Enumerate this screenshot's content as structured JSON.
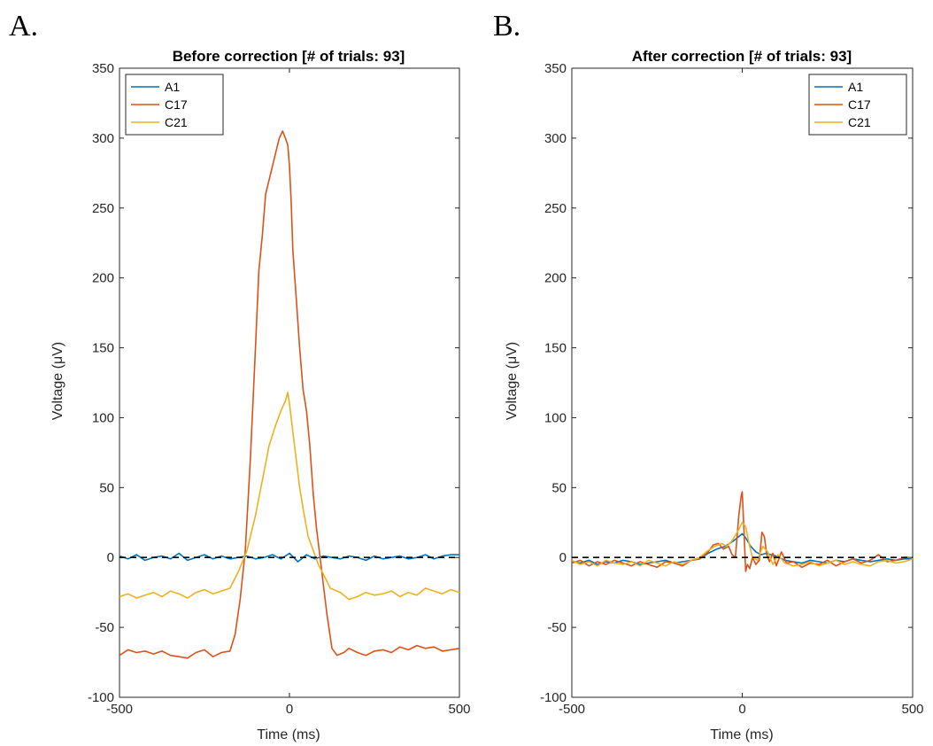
{
  "panels": [
    {
      "letter": "A.",
      "title": "Before correction [# of trials: 93]",
      "xlabel": "Time (ms)",
      "ylabel": "Voltage (μV)",
      "legend_position": "top-left"
    },
    {
      "letter": "B.",
      "title": "After correction [# of trials: 93]",
      "xlabel": "Time (ms)",
      "ylabel": "Voltage (μV)",
      "legend_position": "top-right"
    }
  ],
  "chart_data": [
    {
      "type": "line",
      "title": "Before correction [# of trials: 93]",
      "xlabel": "Time (ms)",
      "ylabel": "Voltage (μV)",
      "xlim": [
        -500,
        500
      ],
      "ylim": [
        -100,
        350
      ],
      "xticks": [
        -500,
        0,
        500
      ],
      "yticks": [
        -100,
        -50,
        0,
        50,
        100,
        150,
        200,
        250,
        300,
        350
      ],
      "grid": false,
      "legend": "top-left",
      "reference_line": {
        "y": 0,
        "style": "dashed",
        "color": "#000000"
      },
      "series": [
        {
          "name": "A1",
          "color": "#0072BD",
          "x": [
            -500,
            -475,
            -450,
            -425,
            -400,
            -375,
            -350,
            -325,
            -300,
            -275,
            -250,
            -225,
            -200,
            -175,
            -150,
            -125,
            -100,
            -75,
            -50,
            -25,
            0,
            25,
            50,
            75,
            100,
            125,
            150,
            175,
            200,
            225,
            250,
            275,
            300,
            325,
            350,
            375,
            400,
            425,
            450,
            475,
            500
          ],
          "y": [
            1,
            -1,
            2,
            -2,
            0,
            1,
            -1,
            3,
            -2,
            0,
            2,
            -1,
            1,
            -1,
            0,
            1,
            -1,
            0,
            2,
            -1,
            3,
            -3,
            2,
            -1,
            1,
            0,
            -1,
            1,
            0,
            -2,
            1,
            -1,
            0,
            1,
            -1,
            0,
            2,
            -1,
            1,
            2,
            2
          ]
        },
        {
          "name": "C17",
          "color": "#D95319",
          "x": [
            -500,
            -475,
            -450,
            -425,
            -400,
            -375,
            -350,
            -325,
            -300,
            -275,
            -250,
            -225,
            -200,
            -175,
            -160,
            -145,
            -130,
            -115,
            -100,
            -90,
            -80,
            -70,
            -60,
            -50,
            -40,
            -30,
            -20,
            -12,
            -5,
            0,
            5,
            10,
            20,
            30,
            40,
            50,
            60,
            70,
            80,
            90,
            100,
            110,
            125,
            140,
            160,
            175,
            200,
            225,
            250,
            275,
            300,
            325,
            350,
            375,
            400,
            425,
            450,
            475,
            500
          ],
          "y": [
            -70,
            -66,
            -68,
            -67,
            -69,
            -67,
            -70,
            -71,
            -72,
            -68,
            -66,
            -71,
            -68,
            -67,
            -55,
            -30,
            5,
            70,
            150,
            205,
            230,
            260,
            270,
            280,
            290,
            300,
            305,
            300,
            295,
            280,
            255,
            220,
            185,
            150,
            120,
            105,
            80,
            45,
            20,
            0,
            -20,
            -40,
            -65,
            -70,
            -68,
            -65,
            -68,
            -70,
            -67,
            -66,
            -68,
            -64,
            -66,
            -63,
            -65,
            -64,
            -67,
            -66,
            -65
          ]
        },
        {
          "name": "C21",
          "color": "#EDB120",
          "x": [
            -500,
            -475,
            -450,
            -425,
            -400,
            -375,
            -350,
            -325,
            -300,
            -275,
            -250,
            -225,
            -200,
            -175,
            -150,
            -125,
            -100,
            -80,
            -60,
            -40,
            -25,
            -12,
            -5,
            0,
            10,
            20,
            30,
            40,
            55,
            70,
            85,
            100,
            120,
            150,
            175,
            200,
            225,
            250,
            275,
            300,
            325,
            350,
            375,
            400,
            425,
            450,
            475,
            500
          ],
          "y": [
            -28,
            -26,
            -29,
            -27,
            -25,
            -28,
            -24,
            -26,
            -29,
            -25,
            -23,
            -26,
            -24,
            -22,
            -10,
            5,
            30,
            55,
            80,
            95,
            105,
            112,
            118,
            110,
            90,
            70,
            50,
            35,
            15,
            5,
            -5,
            -12,
            -22,
            -25,
            -30,
            -28,
            -25,
            -27,
            -26,
            -24,
            -28,
            -25,
            -27,
            -22,
            -24,
            -26,
            -23,
            -25
          ]
        }
      ]
    },
    {
      "type": "line",
      "title": "After correction [# of trials: 93]",
      "xlabel": "Time (ms)",
      "ylabel": "Voltage (μV)",
      "xlim": [
        -500,
        500
      ],
      "ylim": [
        -100,
        350
      ],
      "xticks": [
        -500,
        0,
        500
      ],
      "yticks": [
        -100,
        -50,
        0,
        50,
        100,
        150,
        200,
        250,
        300,
        350
      ],
      "grid": false,
      "legend": "top-right",
      "reference_line": {
        "y": 0,
        "style": "dashed",
        "color": "#000000"
      },
      "series": [
        {
          "name": "A1",
          "color": "#0072BD",
          "x": [
            -500,
            -475,
            -450,
            -425,
            -400,
            -375,
            -350,
            -325,
            -300,
            -275,
            -250,
            -225,
            -200,
            -175,
            -150,
            -125,
            -100,
            -75,
            -50,
            -25,
            -10,
            0,
            10,
            25,
            40,
            55,
            70,
            85,
            100,
            125,
            150,
            175,
            200,
            225,
            250,
            275,
            300,
            325,
            350,
            375,
            400,
            425,
            450,
            475,
            500
          ],
          "y": [
            -3,
            -4,
            -2,
            -5,
            -3,
            -4,
            -2,
            -3,
            -5,
            -4,
            -3,
            -2,
            -4,
            -3,
            -2,
            -1,
            3,
            6,
            8,
            12,
            15,
            17,
            14,
            8,
            4,
            2,
            3,
            2,
            1,
            -2,
            -3,
            -4,
            -2,
            -3,
            -4,
            -2,
            -3,
            -1,
            -2,
            -3,
            -2,
            -1,
            -2,
            -1,
            -1
          ]
        },
        {
          "name": "C17",
          "color": "#D95319",
          "x": [
            -500,
            -475,
            -450,
            -425,
            -400,
            -375,
            -350,
            -325,
            -300,
            -275,
            -250,
            -225,
            -200,
            -175,
            -150,
            -125,
            -100,
            -85,
            -70,
            -55,
            -40,
            -30,
            -20,
            -10,
            -3,
            0,
            5,
            10,
            15,
            22,
            30,
            40,
            50,
            58,
            65,
            72,
            80,
            90,
            100,
            115,
            130,
            150,
            175,
            200,
            225,
            250,
            275,
            300,
            325,
            350,
            375,
            400,
            425,
            450,
            475,
            500
          ],
          "y": [
            -4,
            -2,
            -6,
            -3,
            -5,
            -2,
            -4,
            -6,
            -3,
            -5,
            -7,
            -3,
            -4,
            -6,
            -2,
            -1,
            4,
            9,
            10,
            6,
            8,
            2,
            0,
            30,
            44,
            47,
            20,
            -10,
            -5,
            -8,
            0,
            -5,
            -2,
            18,
            15,
            2,
            -3,
            3,
            -6,
            4,
            -4,
            -3,
            -7,
            -4,
            -5,
            -2,
            -6,
            -3,
            -1,
            -4,
            -2,
            2,
            -3,
            -2,
            0,
            0
          ]
        },
        {
          "name": "C21",
          "color": "#EDB120",
          "x": [
            -500,
            -475,
            -450,
            -425,
            -400,
            -375,
            -350,
            -325,
            -300,
            -275,
            -250,
            -225,
            -200,
            -175,
            -150,
            -125,
            -100,
            -80,
            -60,
            -45,
            -30,
            -20,
            -10,
            0,
            10,
            20,
            30,
            45,
            60,
            75,
            90,
            105,
            125,
            150,
            175,
            200,
            225,
            250,
            275,
            300,
            325,
            350,
            375,
            400,
            425,
            450,
            475,
            500
          ],
          "y": [
            -2,
            -5,
            -3,
            -6,
            -2,
            -4,
            -5,
            -3,
            -6,
            -2,
            -4,
            -6,
            -3,
            -5,
            -2,
            0,
            5,
            8,
            10,
            8,
            12,
            16,
            20,
            25,
            22,
            10,
            0,
            -2,
            8,
            4,
            -5,
            2,
            -4,
            -6,
            -5,
            -3,
            -6,
            -4,
            -2,
            -5,
            -3,
            -5,
            -6,
            -3,
            -2,
            -4,
            -3,
            -1
          ]
        }
      ]
    }
  ]
}
